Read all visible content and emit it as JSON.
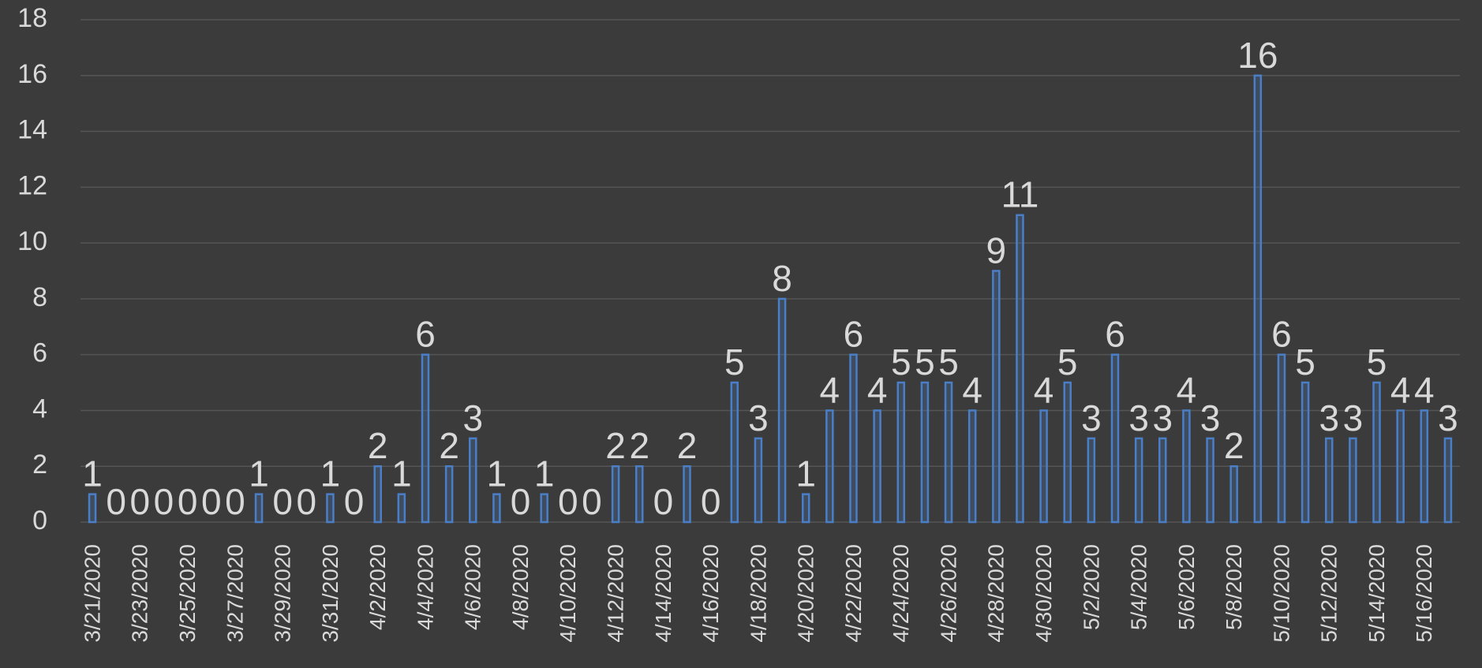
{
  "chart_data": {
    "type": "bar",
    "categories": [
      "3/21/2020",
      null,
      "3/23/2020",
      null,
      "3/25/2020",
      null,
      "3/27/2020",
      null,
      "3/29/2020",
      null,
      "3/31/2020",
      null,
      "4/2/2020",
      null,
      "4/4/2020",
      null,
      "4/6/2020",
      null,
      "4/8/2020",
      null,
      "4/10/2020",
      null,
      "4/12/2020",
      null,
      "4/14/2020",
      null,
      "4/16/2020",
      null,
      "4/18/2020",
      null,
      "4/20/2020",
      null,
      "4/22/2020",
      null,
      "4/24/2020",
      null,
      "4/26/2020",
      null,
      "4/28/2020",
      null,
      "4/30/2020",
      null,
      "5/2/2020",
      null,
      "5/4/2020",
      null,
      "5/6/2020",
      null,
      "5/8/2020",
      null,
      "5/10/2020",
      null,
      "5/12/2020",
      null,
      "5/14/2020",
      null,
      "5/16/2020",
      null
    ],
    "values": [
      1,
      0,
      0,
      0,
      0,
      0,
      0,
      1,
      0,
      0,
      1,
      0,
      2,
      1,
      6,
      2,
      3,
      1,
      0,
      1,
      0,
      0,
      2,
      2,
      0,
      2,
      0,
      5,
      3,
      8,
      1,
      4,
      6,
      4,
      5,
      5,
      5,
      4,
      9,
      11,
      4,
      5,
      3,
      6,
      3,
      3,
      4,
      3,
      2,
      16,
      6,
      5,
      3,
      3,
      5,
      4,
      4,
      3
    ],
    "color": "#4a7fc7",
    "ylim": [
      0,
      18
    ],
    "yticks": [
      0,
      2,
      4,
      6,
      8,
      10,
      12,
      14,
      16,
      18
    ],
    "grid": true
  }
}
